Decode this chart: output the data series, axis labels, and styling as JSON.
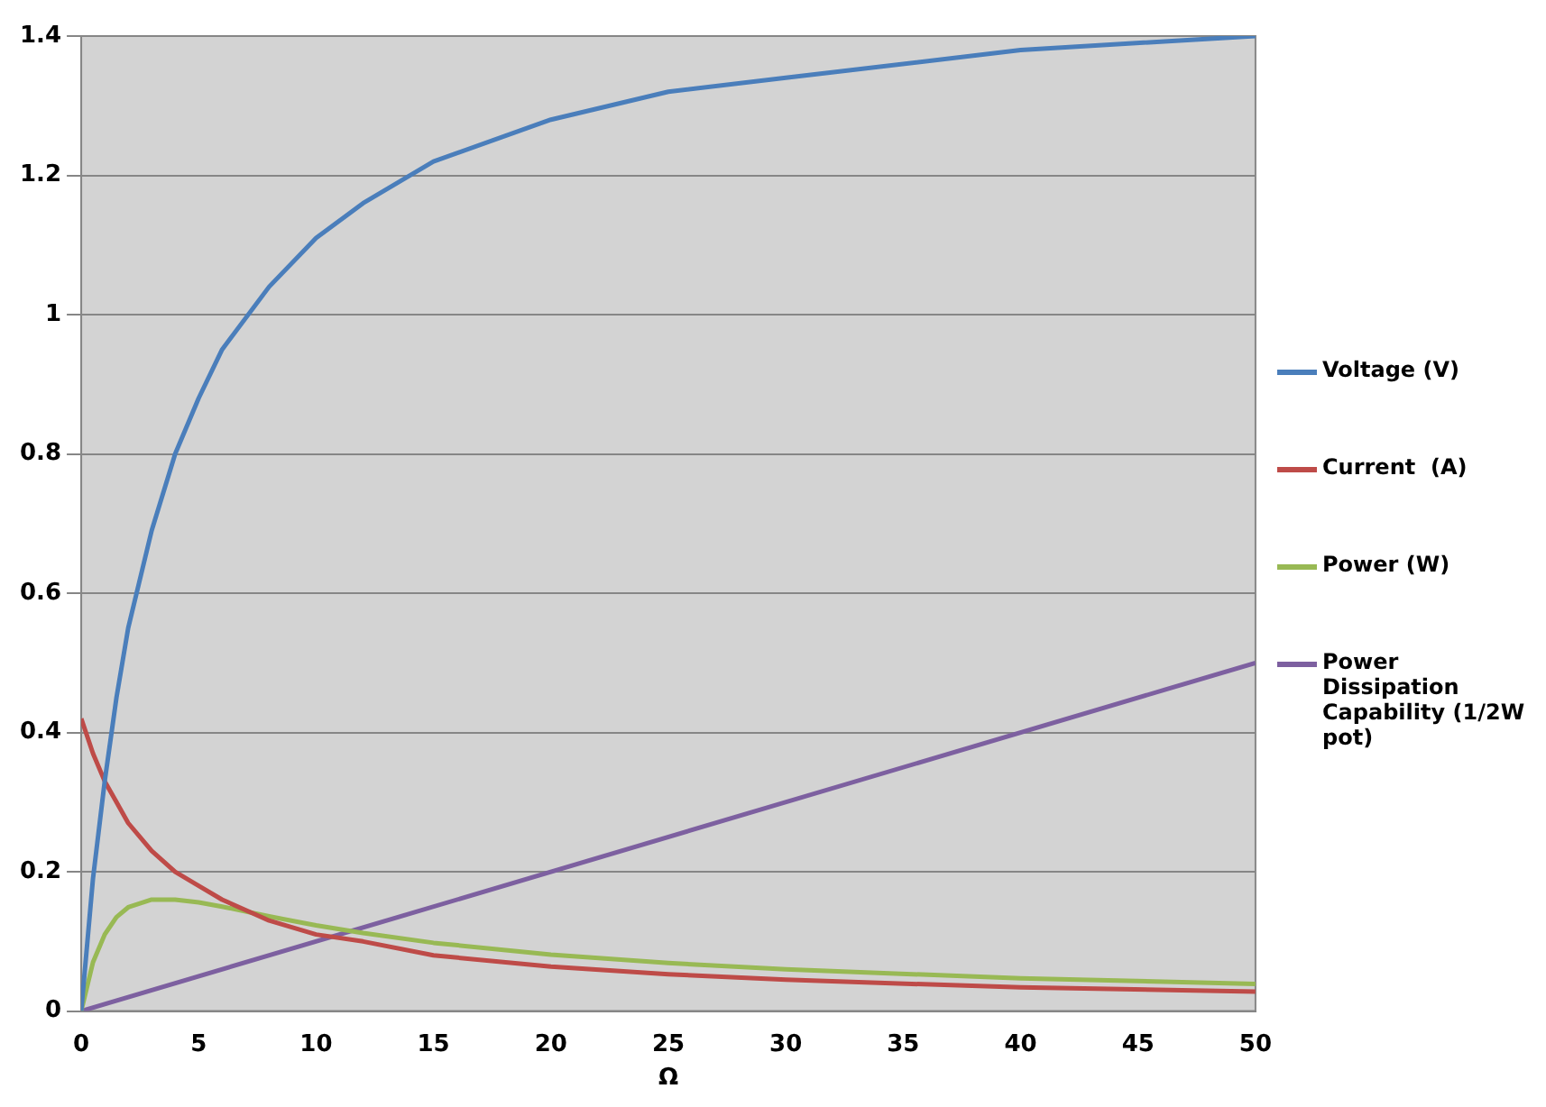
{
  "chart_data": {
    "type": "line",
    "xlabel": "Ω",
    "x": [
      0,
      0.5,
      1,
      1.5,
      2,
      3,
      4,
      5,
      6,
      8,
      10,
      12,
      15,
      20,
      25,
      30,
      40,
      50
    ],
    "series": [
      {
        "name": "Voltage (V)",
        "color": "#4a7ebb",
        "values": [
          0,
          0.19,
          0.33,
          0.45,
          0.55,
          0.69,
          0.8,
          0.88,
          0.95,
          1.04,
          1.11,
          1.16,
          1.22,
          1.28,
          1.32,
          1.34,
          1.38,
          1.4
        ]
      },
      {
        "name": "Current  (A)",
        "color": "#be4b48",
        "values": [
          0.42,
          0.37,
          0.33,
          0.3,
          0.27,
          0.23,
          0.2,
          0.18,
          0.16,
          0.13,
          0.11,
          0.1,
          0.08,
          0.064,
          0.053,
          0.045,
          0.034,
          0.028
        ]
      },
      {
        "name": "Power (W)",
        "color": "#98b954",
        "values": [
          0,
          0.07,
          0.11,
          0.135,
          0.149,
          0.16,
          0.16,
          0.156,
          0.15,
          0.136,
          0.123,
          0.112,
          0.098,
          0.081,
          0.069,
          0.06,
          0.047,
          0.039
        ]
      },
      {
        "name": "Power Dissipation Capability (1/2W pot)",
        "color": "#7d60a0",
        "x": [
          0,
          50
        ],
        "values": [
          0,
          0.5
        ]
      }
    ],
    "xlim": [
      0,
      50
    ],
    "xticks": [
      0,
      5,
      10,
      15,
      20,
      25,
      30,
      35,
      40,
      45,
      50
    ],
    "ylim": [
      0,
      1.4
    ],
    "yticks": [
      0,
      0.2,
      0.4,
      0.6,
      0.8,
      1,
      1.2,
      1.4
    ],
    "grid": "y",
    "legend": "right",
    "marker": "none",
    "line_style": "solid"
  }
}
